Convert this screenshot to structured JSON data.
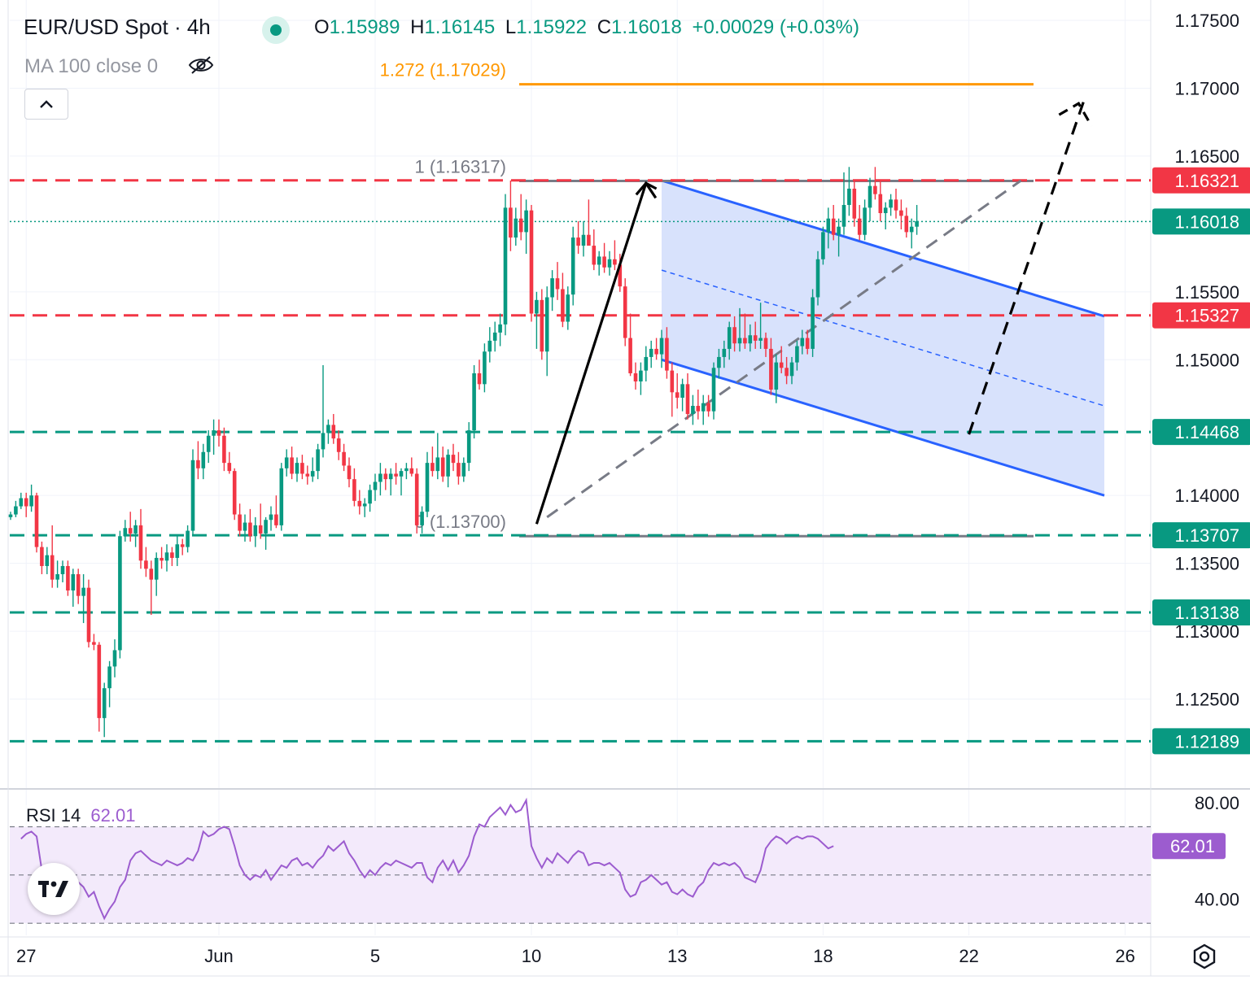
{
  "header": {
    "symbol": "EUR/USD Spot · 4h",
    "open_label": "O",
    "open": "1.15989",
    "high_label": "H",
    "high": "1.16145",
    "low_label": "L",
    "low": "1.15922",
    "close_label": "C",
    "close": "1.16018",
    "change": "+0.00029 (+0.03%)",
    "indicator": "MA 100 close 0"
  },
  "colors": {
    "up": "#089981",
    "down": "#f23645",
    "channel": "#2962ff",
    "channel_fill": "#d6e0fc",
    "fib_ext": "#ff9800",
    "rsi": "#9c5ccf",
    "rsi_band": "#f3eafb",
    "support": "#089981",
    "resistance": "#f23645"
  },
  "icons": [
    "collapse-chevron-icon",
    "eye-off-icon",
    "tradingview-logo-icon",
    "settings-icon"
  ],
  "chart_data": {
    "type": "candlestick",
    "title": "EUR/USD Spot · 4h",
    "ylim": [
      1.1185,
      1.1765
    ],
    "y_ticks": [
      "1.17500",
      "1.17000",
      "1.16500",
      "1.15500",
      "1.15000",
      "1.14000",
      "1.13500",
      "1.13000",
      "1.12500"
    ],
    "x_ticks": [
      {
        "label": "27",
        "i": 3
      },
      {
        "label": "Jun",
        "i": 40
      },
      {
        "label": "5",
        "i": 70
      },
      {
        "label": "10",
        "i": 100
      },
      {
        "label": "13",
        "i": 128
      },
      {
        "label": "18",
        "i": 156
      },
      {
        "label": "22",
        "i": 184
      },
      {
        "label": "26",
        "i": 214
      }
    ],
    "candles_ohlc": [
      [
        1.1384,
        1.1388,
        1.1382,
        1.1386
      ],
      [
        1.1386,
        1.1396,
        1.1384,
        1.1392
      ],
      [
        1.1392,
        1.1402,
        1.139,
        1.1398
      ],
      [
        1.1398,
        1.1402,
        1.1384,
        1.1392
      ],
      [
        1.1392,
        1.1408,
        1.1388,
        1.14
      ],
      [
        1.14,
        1.1402,
        1.1358,
        1.1362
      ],
      [
        1.1362,
        1.1366,
        1.1342,
        1.1348
      ],
      [
        1.1348,
        1.1362,
        1.1342,
        1.1356
      ],
      [
        1.1356,
        1.1378,
        1.1332,
        1.1338
      ],
      [
        1.1338,
        1.1352,
        1.1332,
        1.1342
      ],
      [
        1.1342,
        1.1352,
        1.1336,
        1.1348
      ],
      [
        1.1348,
        1.1352,
        1.1326,
        1.133
      ],
      [
        1.133,
        1.1346,
        1.1318,
        1.1342
      ],
      [
        1.1342,
        1.1346,
        1.132,
        1.1326
      ],
      [
        1.1326,
        1.1342,
        1.1306,
        1.1332
      ],
      [
        1.1332,
        1.1338,
        1.1288,
        1.1292
      ],
      [
        1.1292,
        1.1298,
        1.1286,
        1.129
      ],
      [
        1.129,
        1.1292,
        1.1226,
        1.1236
      ],
      [
        1.1236,
        1.1262,
        1.1222,
        1.1258
      ],
      [
        1.1258,
        1.1278,
        1.1244,
        1.1274
      ],
      [
        1.1274,
        1.1294,
        1.1266,
        1.1286
      ],
      [
        1.1286,
        1.1374,
        1.128,
        1.137
      ],
      [
        1.137,
        1.1382,
        1.1366,
        1.1376
      ],
      [
        1.1376,
        1.1388,
        1.1366,
        1.1372
      ],
      [
        1.1372,
        1.1382,
        1.1362,
        1.1378
      ],
      [
        1.1378,
        1.139,
        1.1346,
        1.1352
      ],
      [
        1.1352,
        1.1362,
        1.134,
        1.1346
      ],
      [
        1.1346,
        1.1352,
        1.1312,
        1.1338
      ],
      [
        1.1338,
        1.1358,
        1.1326,
        1.1354
      ],
      [
        1.1354,
        1.1362,
        1.1346,
        1.1352
      ],
      [
        1.1352,
        1.1364,
        1.1344,
        1.1358
      ],
      [
        1.1358,
        1.1362,
        1.1348,
        1.1354
      ],
      [
        1.1354,
        1.137,
        1.1348,
        1.1364
      ],
      [
        1.1364,
        1.1368,
        1.1356,
        1.1362
      ],
      [
        1.1362,
        1.1378,
        1.1358,
        1.1374
      ],
      [
        1.1374,
        1.1434,
        1.137,
        1.1426
      ],
      [
        1.1426,
        1.144,
        1.1412,
        1.142
      ],
      [
        1.142,
        1.1438,
        1.1412,
        1.1432
      ],
      [
        1.1432,
        1.1448,
        1.1424,
        1.1444
      ],
      [
        1.1444,
        1.1456,
        1.143,
        1.1448
      ],
      [
        1.1448,
        1.1456,
        1.1436,
        1.1444
      ],
      [
        1.1444,
        1.145,
        1.1418,
        1.1424
      ],
      [
        1.1424,
        1.1432,
        1.1416,
        1.1418
      ],
      [
        1.1418,
        1.142,
        1.1382,
        1.1386
      ],
      [
        1.1386,
        1.1394,
        1.137,
        1.1374
      ],
      [
        1.1374,
        1.1386,
        1.1366,
        1.138
      ],
      [
        1.138,
        1.139,
        1.1366,
        1.137
      ],
      [
        1.137,
        1.1384,
        1.1362,
        1.1378
      ],
      [
        1.1378,
        1.1394,
        1.1368,
        1.1372
      ],
      [
        1.1372,
        1.1384,
        1.136,
        1.1382
      ],
      [
        1.1382,
        1.1392,
        1.1374,
        1.1386
      ],
      [
        1.1386,
        1.14,
        1.1376,
        1.1378
      ],
      [
        1.1378,
        1.1424,
        1.1374,
        1.142
      ],
      [
        1.142,
        1.1434,
        1.1414,
        1.1428
      ],
      [
        1.1428,
        1.1436,
        1.1412,
        1.1416
      ],
      [
        1.1416,
        1.1428,
        1.141,
        1.1424
      ],
      [
        1.1424,
        1.143,
        1.1412,
        1.1416
      ],
      [
        1.1416,
        1.1422,
        1.1408,
        1.1414
      ],
      [
        1.1414,
        1.1428,
        1.141,
        1.1418
      ],
      [
        1.1418,
        1.1438,
        1.1412,
        1.1434
      ],
      [
        1.1434,
        1.1496,
        1.1428,
        1.1446
      ],
      [
        1.1446,
        1.1456,
        1.1438,
        1.1452
      ],
      [
        1.1452,
        1.146,
        1.1438,
        1.1442
      ],
      [
        1.1442,
        1.1448,
        1.1426,
        1.1432
      ],
      [
        1.1432,
        1.1438,
        1.1418,
        1.1422
      ],
      [
        1.1422,
        1.1428,
        1.1406,
        1.1412
      ],
      [
        1.1412,
        1.142,
        1.1392,
        1.1396
      ],
      [
        1.1396,
        1.1404,
        1.1386,
        1.1392
      ],
      [
        1.1392,
        1.1398,
        1.1384,
        1.1394
      ],
      [
        1.1394,
        1.1408,
        1.1388,
        1.1404
      ],
      [
        1.1404,
        1.1416,
        1.1396,
        1.141
      ],
      [
        1.141,
        1.1424,
        1.14,
        1.1416
      ],
      [
        1.1416,
        1.142,
        1.1404,
        1.1412
      ],
      [
        1.1412,
        1.142,
        1.14,
        1.1416
      ],
      [
        1.1416,
        1.1424,
        1.1408,
        1.1414
      ],
      [
        1.1414,
        1.142,
        1.14,
        1.1418
      ],
      [
        1.1418,
        1.1424,
        1.1412,
        1.142
      ],
      [
        1.142,
        1.1428,
        1.1414,
        1.1416
      ],
      [
        1.1416,
        1.142,
        1.1372,
        1.1378
      ],
      [
        1.1378,
        1.1392,
        1.1372,
        1.1388
      ],
      [
        1.1388,
        1.1432,
        1.1384,
        1.1424
      ],
      [
        1.1424,
        1.1436,
        1.1414,
        1.1418
      ],
      [
        1.1418,
        1.1446,
        1.1412,
        1.1428
      ],
      [
        1.1428,
        1.1436,
        1.141,
        1.1414
      ],
      [
        1.1414,
        1.1434,
        1.1406,
        1.143
      ],
      [
        1.143,
        1.1438,
        1.1418,
        1.1424
      ],
      [
        1.1424,
        1.1432,
        1.1408,
        1.1414
      ],
      [
        1.1414,
        1.1428,
        1.141,
        1.1424
      ],
      [
        1.1424,
        1.1454,
        1.1418,
        1.1448
      ],
      [
        1.1448,
        1.1496,
        1.1442,
        1.149
      ],
      [
        1.149,
        1.15,
        1.1478,
        1.1482
      ],
      [
        1.1482,
        1.1512,
        1.1476,
        1.1506
      ],
      [
        1.1506,
        1.1524,
        1.1498,
        1.1514
      ],
      [
        1.1514,
        1.1528,
        1.1506,
        1.152
      ],
      [
        1.152,
        1.1534,
        1.151,
        1.1526
      ],
      [
        1.1526,
        1.1622,
        1.1518,
        1.1612
      ],
      [
        1.1612,
        1.1632,
        1.158,
        1.159
      ],
      [
        1.159,
        1.1612,
        1.1584,
        1.1604
      ],
      [
        1.1604,
        1.1622,
        1.1588,
        1.1594
      ],
      [
        1.1594,
        1.1618,
        1.1578,
        1.161
      ],
      [
        1.161,
        1.1614,
        1.1528,
        1.1534
      ],
      [
        1.1534,
        1.155,
        1.1508,
        1.1544
      ],
      [
        1.1544,
        1.1552,
        1.15,
        1.1506
      ],
      [
        1.1506,
        1.1554,
        1.1488,
        1.1546
      ],
      [
        1.1546,
        1.1566,
        1.1536,
        1.156
      ],
      [
        1.156,
        1.1572,
        1.1544,
        1.1552
      ],
      [
        1.1552,
        1.1564,
        1.1524,
        1.1528
      ],
      [
        1.1528,
        1.1554,
        1.1522,
        1.1548
      ],
      [
        1.1548,
        1.1598,
        1.154,
        1.159
      ],
      [
        1.159,
        1.1602,
        1.1578,
        1.1584
      ],
      [
        1.1584,
        1.1602,
        1.1576,
        1.1592
      ],
      [
        1.1592,
        1.1618,
        1.1586,
        1.1584
      ],
      [
        1.1584,
        1.1596,
        1.1566,
        1.157
      ],
      [
        1.157,
        1.158,
        1.1562,
        1.1576
      ],
      [
        1.1576,
        1.1586,
        1.1564,
        1.1568
      ],
      [
        1.1568,
        1.158,
        1.1562,
        1.1574
      ],
      [
        1.1574,
        1.1588,
        1.1566,
        1.157
      ],
      [
        1.157,
        1.1578,
        1.155,
        1.1554
      ],
      [
        1.1554,
        1.156,
        1.151,
        1.1516
      ],
      [
        1.1516,
        1.1534,
        1.1488,
        1.149
      ],
      [
        1.149,
        1.1498,
        1.1478,
        1.1484
      ],
      [
        1.1484,
        1.1498,
        1.1474,
        1.1492
      ],
      [
        1.1492,
        1.151,
        1.1484,
        1.1502
      ],
      [
        1.1502,
        1.1514,
        1.1494,
        1.1508
      ],
      [
        1.1508,
        1.1516,
        1.15,
        1.1504
      ],
      [
        1.1504,
        1.1522,
        1.1494,
        1.1516
      ],
      [
        1.1516,
        1.1524,
        1.1486,
        1.1492
      ],
      [
        1.1492,
        1.1498,
        1.1458,
        1.1476
      ],
      [
        1.1476,
        1.149,
        1.1464,
        1.1472
      ],
      [
        1.1472,
        1.1486,
        1.1462,
        1.1482
      ],
      [
        1.1482,
        1.149,
        1.1456,
        1.146
      ],
      [
        1.146,
        1.1474,
        1.1452,
        1.1466
      ],
      [
        1.1466,
        1.1478,
        1.1456,
        1.1462
      ],
      [
        1.1462,
        1.1474,
        1.1452,
        1.1468
      ],
      [
        1.1468,
        1.1474,
        1.1458,
        1.1462
      ],
      [
        1.1462,
        1.1498,
        1.1456,
        1.1494
      ],
      [
        1.1494,
        1.1508,
        1.1486,
        1.1502
      ],
      [
        1.1502,
        1.1514,
        1.1494,
        1.1508
      ],
      [
        1.1508,
        1.1528,
        1.15,
        1.1524
      ],
      [
        1.1524,
        1.1532,
        1.1506,
        1.1512
      ],
      [
        1.1512,
        1.1538,
        1.1506,
        1.1516
      ],
      [
        1.1516,
        1.1534,
        1.1508,
        1.1512
      ],
      [
        1.1512,
        1.1526,
        1.1506,
        1.1518
      ],
      [
        1.1518,
        1.1528,
        1.1508,
        1.1514
      ],
      [
        1.1514,
        1.1542,
        1.1508,
        1.1516
      ],
      [
        1.1516,
        1.152,
        1.1502,
        1.1508
      ],
      [
        1.1508,
        1.1516,
        1.1474,
        1.1478
      ],
      [
        1.1478,
        1.1504,
        1.1468,
        1.1498
      ],
      [
        1.1498,
        1.151,
        1.149,
        1.1494
      ],
      [
        1.1494,
        1.1502,
        1.1482,
        1.1488
      ],
      [
        1.1488,
        1.1502,
        1.1482,
        1.1498
      ],
      [
        1.1498,
        1.1514,
        1.1492,
        1.151
      ],
      [
        1.151,
        1.1522,
        1.1504,
        1.1516
      ],
      [
        1.1516,
        1.1522,
        1.1504,
        1.1508
      ],
      [
        1.1508,
        1.1552,
        1.1502,
        1.1546
      ],
      [
        1.1546,
        1.158,
        1.154,
        1.1574
      ],
      [
        1.1574,
        1.1598,
        1.157,
        1.1594
      ],
      [
        1.1594,
        1.1612,
        1.1582,
        1.1604
      ],
      [
        1.1604,
        1.1614,
        1.1588,
        1.1592
      ],
      [
        1.1592,
        1.1604,
        1.1576,
        1.1598
      ],
      [
        1.1598,
        1.1638,
        1.1592,
        1.1614
      ],
      [
        1.1614,
        1.1642,
        1.1606,
        1.1626
      ],
      [
        1.1626,
        1.1632,
        1.1598,
        1.1604
      ],
      [
        1.1604,
        1.1614,
        1.1588,
        1.1592
      ],
      [
        1.1592,
        1.1618,
        1.1588,
        1.1612
      ],
      [
        1.1612,
        1.1634,
        1.1602,
        1.1628
      ],
      [
        1.1628,
        1.1642,
        1.1618,
        1.1622
      ],
      [
        1.1622,
        1.1632,
        1.1602,
        1.1608
      ],
      [
        1.1608,
        1.1616,
        1.1596,
        1.1612
      ],
      [
        1.1612,
        1.1622,
        1.1606,
        1.1618
      ],
      [
        1.1618,
        1.1626,
        1.1604,
        1.161
      ],
      [
        1.161,
        1.1618,
        1.1596,
        1.1606
      ],
      [
        1.1606,
        1.1612,
        1.159,
        1.1594
      ],
      [
        1.1594,
        1.1604,
        1.1582,
        1.1598
      ],
      [
        1.1598,
        1.1614,
        1.1592,
        1.1602
      ]
    ],
    "price_labels": [
      {
        "label": "1.16321",
        "value": 1.16321,
        "kind": "resistance"
      },
      {
        "label": "1.16018",
        "value": 1.16018,
        "kind": "last"
      },
      {
        "label": "1.15327",
        "value": 1.15327,
        "kind": "resistance"
      },
      {
        "label": "1.14468",
        "value": 1.14468,
        "kind": "support"
      },
      {
        "label": "1.13707",
        "value": 1.13707,
        "kind": "support"
      },
      {
        "label": "1.13138",
        "value": 1.13138,
        "kind": "support"
      },
      {
        "label": "1.12189",
        "value": 1.12189,
        "kind": "support"
      }
    ],
    "fib": [
      {
        "label": "1.272 (1.17029)",
        "value": 1.17029
      },
      {
        "label": "1 (1.16317)",
        "value": 1.16317
      },
      {
        "label": "0 (1.13700)",
        "value": 1.137
      }
    ],
    "channel": {
      "upper": [
        [
          125,
          1.1632
        ],
        [
          210,
          1.1532
        ]
      ],
      "lower": [
        [
          125,
          1.15
        ],
        [
          210,
          1.14
        ]
      ],
      "mid": [
        [
          125,
          1.1566
        ],
        [
          210,
          1.1466
        ]
      ]
    },
    "rsi": {
      "label": "RSI 14",
      "value": "62.01",
      "ylim": [
        25,
        85
      ],
      "ticks": [
        "80.00",
        "40.00"
      ],
      "bands": [
        70,
        50,
        30
      ],
      "values": [
        65,
        67,
        68,
        66,
        52,
        48,
        50,
        49,
        46,
        44,
        48,
        47,
        45,
        41,
        43,
        37,
        32,
        36,
        39,
        45,
        48,
        56,
        59,
        60,
        58,
        56,
        55,
        54,
        56,
        55,
        54,
        55,
        57,
        56,
        60,
        68,
        66,
        67,
        69,
        70,
        69,
        62,
        54,
        50,
        48,
        50,
        49,
        52,
        48,
        51,
        54,
        53,
        56,
        57,
        54,
        55,
        53,
        56,
        58,
        62,
        60,
        62,
        64,
        59,
        56,
        52,
        49,
        52,
        50,
        53,
        55,
        54,
        56,
        55,
        54,
        53,
        55,
        55,
        49,
        47,
        53,
        56,
        52,
        56,
        51,
        54,
        58,
        66,
        71,
        70,
        74,
        76,
        78,
        75,
        79,
        76,
        77,
        81,
        62,
        57,
        53,
        57,
        55,
        59,
        57,
        55,
        58,
        60,
        59,
        54,
        55,
        55,
        54,
        55,
        53,
        51,
        44,
        41,
        42,
        47,
        48,
        50,
        48,
        46,
        47,
        43,
        42,
        44,
        42,
        41,
        45,
        47,
        52,
        55,
        54,
        55,
        54,
        55,
        53,
        49,
        48,
        47,
        52,
        61,
        64,
        66,
        65,
        63,
        65,
        66,
        65,
        66,
        66,
        65,
        63,
        61,
        62
      ],
      "val_start_index": 2
    },
    "annotation_paths": {
      "impulse_up": [
        [
          101,
          1.1379
        ],
        [
          122,
          1.163
        ],
        [
          124,
          1.1626
        ]
      ],
      "impulse_dashed": [
        [
          184,
          1.1445
        ],
        [
          206,
          1.169
        ]
      ],
      "projection_grey": [
        [
          103,
          1.1384
        ],
        [
          194,
          1.1632
        ]
      ]
    }
  }
}
